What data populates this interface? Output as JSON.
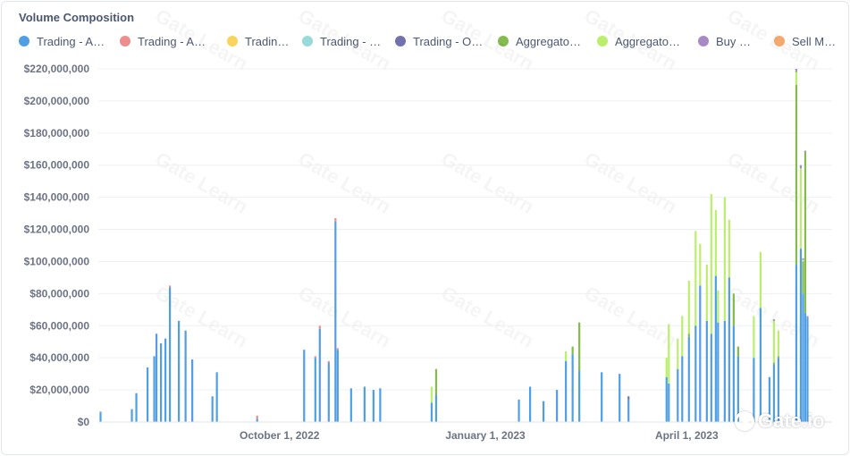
{
  "chart_data": {
    "type": "bar",
    "stacked": true,
    "title": "Volume Composition",
    "xlabel": "",
    "ylabel": "",
    "ylim": [
      0,
      220000000
    ],
    "y_ticks": [
      0,
      20000000,
      40000000,
      60000000,
      80000000,
      100000000,
      120000000,
      140000000,
      160000000,
      180000000,
      200000000,
      220000000
    ],
    "y_tick_labels": [
      "$0",
      "$20,000,000",
      "$40,000,000",
      "$60,000,000",
      "$80,000,000",
      "$100,000,000",
      "$120,000,000",
      "$140,000,000",
      "$160,000,000",
      "$180,000,000",
      "$200,000,000",
      "$220,000,000"
    ],
    "x_range": [
      "2022-07-12",
      "2023-06-05"
    ],
    "x_ticks": [
      {
        "date": "2022-10-01",
        "label": "October 1, 2022"
      },
      {
        "date": "2023-01-01",
        "label": "January 1, 2023"
      },
      {
        "date": "2023-04-01",
        "label": "April 1, 2023"
      }
    ],
    "grid": true,
    "legend_position": "top",
    "watermark": "Gate Learn",
    "brand_logo": "Gate.io",
    "series": [
      {
        "name": "Trading - A…",
        "color": "#509ee3"
      },
      {
        "name": "Trading - A…",
        "color": "#ef8c8c"
      },
      {
        "name": "Tradin…",
        "color": "#f9d45c"
      },
      {
        "name": "Trading - …",
        "color": "#98d9d9"
      },
      {
        "name": "Trading - O…",
        "color": "#7172ad"
      },
      {
        "name": "Aggregato…",
        "color": "#84bb4c"
      },
      {
        "name": "Aggregato…",
        "color": "#b9ef6b"
      },
      {
        "name": "Buy …",
        "color": "#a989c5"
      },
      {
        "name": "Sell M…",
        "color": "#f2a86f"
      }
    ],
    "bars": [
      {
        "date": "2022-07-13",
        "values": [
          6000000,
          0,
          0,
          0,
          0,
          0,
          0,
          500000,
          0
        ]
      },
      {
        "date": "2022-07-27",
        "values": [
          8000000,
          0,
          0,
          0,
          0,
          0,
          0,
          0,
          0
        ]
      },
      {
        "date": "2022-07-29",
        "values": [
          18000000,
          0,
          0,
          0,
          0,
          0,
          0,
          0,
          0
        ]
      },
      {
        "date": "2022-08-03",
        "values": [
          34000000,
          0,
          0,
          0,
          0,
          0,
          0,
          0,
          0
        ]
      },
      {
        "date": "2022-08-06",
        "values": [
          41000000,
          0,
          0,
          0,
          0,
          0,
          0,
          0,
          0
        ]
      },
      {
        "date": "2022-08-07",
        "values": [
          55000000,
          0,
          0,
          0,
          0,
          0,
          0,
          0,
          0
        ]
      },
      {
        "date": "2022-08-09",
        "values": [
          49000000,
          0,
          0,
          0,
          0,
          0,
          0,
          0,
          0
        ]
      },
      {
        "date": "2022-08-11",
        "values": [
          52000000,
          0,
          0,
          0,
          0,
          0,
          0,
          0,
          0
        ]
      },
      {
        "date": "2022-08-13",
        "values": [
          84000000,
          1000000,
          0,
          0,
          0,
          0,
          0,
          0,
          0
        ]
      },
      {
        "date": "2022-08-17",
        "values": [
          63000000,
          0,
          0,
          0,
          0,
          0,
          0,
          0,
          0
        ]
      },
      {
        "date": "2022-08-20",
        "values": [
          57000000,
          0,
          0,
          0,
          0,
          0,
          0,
          0,
          0
        ]
      },
      {
        "date": "2022-08-23",
        "values": [
          39000000,
          0,
          0,
          0,
          0,
          0,
          0,
          0,
          0
        ]
      },
      {
        "date": "2022-09-01",
        "values": [
          16000000,
          0,
          0,
          0,
          0,
          0,
          0,
          0,
          0
        ]
      },
      {
        "date": "2022-09-03",
        "values": [
          31000000,
          0,
          0,
          0,
          0,
          0,
          0,
          0,
          0
        ]
      },
      {
        "date": "2022-09-21",
        "values": [
          2000000,
          2000000,
          0,
          0,
          0,
          0,
          0,
          0,
          0
        ]
      },
      {
        "date": "2022-10-12",
        "values": [
          45000000,
          0,
          0,
          0,
          0,
          0,
          0,
          0,
          0
        ]
      },
      {
        "date": "2022-10-17",
        "values": [
          40000000,
          1000000,
          0,
          0,
          0,
          0,
          0,
          0,
          0
        ]
      },
      {
        "date": "2022-10-19",
        "values": [
          58000000,
          2000000,
          0,
          0,
          0,
          0,
          0,
          0,
          0
        ]
      },
      {
        "date": "2022-10-23",
        "values": [
          37000000,
          1000000,
          0,
          0,
          0,
          0,
          0,
          0,
          0
        ]
      },
      {
        "date": "2022-10-26",
        "values": [
          125000000,
          2000000,
          0,
          0,
          0,
          0,
          0,
          0,
          0
        ]
      },
      {
        "date": "2022-10-27",
        "values": [
          45000000,
          1000000,
          0,
          0,
          0,
          0,
          0,
          0,
          0
        ]
      },
      {
        "date": "2022-11-02",
        "values": [
          21000000,
          0,
          0,
          0,
          0,
          0,
          0,
          0,
          0
        ]
      },
      {
        "date": "2022-11-08",
        "values": [
          22000000,
          0,
          0,
          0,
          0,
          0,
          0,
          0,
          0
        ]
      },
      {
        "date": "2022-11-12",
        "values": [
          20000000,
          0,
          0,
          0,
          0,
          0,
          0,
          0,
          0
        ]
      },
      {
        "date": "2022-11-15",
        "values": [
          21000000,
          0,
          0,
          0,
          0,
          0,
          0,
          0,
          0
        ]
      },
      {
        "date": "2022-12-08",
        "values": [
          12000000,
          0,
          0,
          0,
          0,
          0,
          10000000,
          0,
          0
        ]
      },
      {
        "date": "2022-12-10",
        "values": [
          17000000,
          0,
          0,
          0,
          0,
          16000000,
          0,
          0,
          0
        ]
      },
      {
        "date": "2023-01-16",
        "values": [
          14000000,
          0,
          0,
          0,
          0,
          0,
          0,
          0,
          0
        ]
      },
      {
        "date": "2023-01-21",
        "values": [
          22000000,
          0,
          0,
          0,
          0,
          0,
          0,
          0,
          0
        ]
      },
      {
        "date": "2023-01-27",
        "values": [
          13000000,
          0,
          0,
          0,
          0,
          0,
          0,
          0,
          0
        ]
      },
      {
        "date": "2023-02-02",
        "values": [
          20000000,
          0,
          0,
          0,
          0,
          0,
          0,
          0,
          0
        ]
      },
      {
        "date": "2023-02-06",
        "values": [
          38000000,
          0,
          0,
          0,
          0,
          0,
          6000000,
          0,
          0
        ]
      },
      {
        "date": "2023-02-09",
        "values": [
          42000000,
          0,
          0,
          0,
          0,
          5000000,
          0,
          0,
          0
        ]
      },
      {
        "date": "2023-02-12",
        "values": [
          32000000,
          0,
          0,
          0,
          0,
          30000000,
          0,
          0,
          0
        ]
      },
      {
        "date": "2023-02-22",
        "values": [
          31000000,
          0,
          0,
          0,
          0,
          0,
          0,
          0,
          0
        ]
      },
      {
        "date": "2023-03-02",
        "values": [
          30000000,
          0,
          0,
          0,
          0,
          0,
          0,
          0,
          0
        ]
      },
      {
        "date": "2023-03-06",
        "values": [
          14000000,
          0,
          0,
          0,
          2000000,
          0,
          0,
          0,
          0
        ]
      },
      {
        "date": "2023-03-23",
        "values": [
          28000000,
          0,
          0,
          0,
          0,
          0,
          12000000,
          0,
          0
        ]
      },
      {
        "date": "2023-03-24",
        "values": [
          24000000,
          0,
          0,
          0,
          0,
          0,
          37000000,
          0,
          0
        ]
      },
      {
        "date": "2023-03-28",
        "values": [
          33000000,
          0,
          0,
          0,
          0,
          0,
          19000000,
          0,
          0
        ]
      },
      {
        "date": "2023-03-30",
        "values": [
          41000000,
          0,
          0,
          0,
          0,
          0,
          25000000,
          0,
          0
        ]
      },
      {
        "date": "2023-04-02",
        "values": [
          53000000,
          0,
          0,
          0,
          0,
          2000000,
          33000000,
          0,
          0
        ]
      },
      {
        "date": "2023-04-05",
        "values": [
          60000000,
          0,
          0,
          0,
          0,
          0,
          59000000,
          0,
          0
        ]
      },
      {
        "date": "2023-04-07",
        "values": [
          85000000,
          0,
          0,
          0,
          0,
          0,
          26000000,
          0,
          0
        ]
      },
      {
        "date": "2023-04-10",
        "values": [
          63000000,
          0,
          0,
          0,
          0,
          0,
          35000000,
          0,
          0
        ]
      },
      {
        "date": "2023-04-12",
        "values": [
          55000000,
          0,
          0,
          0,
          0,
          0,
          87000000,
          0,
          0
        ]
      },
      {
        "date": "2023-04-14",
        "values": [
          91000000,
          0,
          0,
          0,
          0,
          0,
          41000000,
          0,
          0
        ]
      },
      {
        "date": "2023-04-15",
        "values": [
          62000000,
          0,
          0,
          0,
          0,
          0,
          20000000,
          0,
          0
        ]
      },
      {
        "date": "2023-04-18",
        "values": [
          63000000,
          0,
          0,
          0,
          0,
          0,
          77000000,
          0,
          0
        ]
      },
      {
        "date": "2023-04-20",
        "values": [
          90000000,
          0,
          0,
          0,
          0,
          0,
          36000000,
          0,
          0
        ]
      },
      {
        "date": "2023-04-22",
        "values": [
          60000000,
          0,
          0,
          0,
          0,
          20000000,
          0,
          0,
          0
        ]
      },
      {
        "date": "2023-04-24",
        "values": [
          41000000,
          0,
          0,
          0,
          0,
          6000000,
          0,
          0,
          0
        ]
      },
      {
        "date": "2023-05-01",
        "values": [
          40000000,
          0,
          0,
          0,
          0,
          0,
          26000000,
          0,
          0
        ]
      },
      {
        "date": "2023-05-04",
        "values": [
          71000000,
          0,
          0,
          0,
          0,
          0,
          35000000,
          0,
          0
        ]
      },
      {
        "date": "2023-05-08",
        "values": [
          28000000,
          0,
          0,
          0,
          0,
          0,
          0,
          0,
          0
        ]
      },
      {
        "date": "2023-05-10",
        "values": [
          36000000,
          0,
          0,
          0,
          0,
          1000000,
          26000000,
          1000000,
          0
        ]
      },
      {
        "date": "2023-05-12",
        "values": [
          40000000,
          0,
          0,
          0,
          0,
          1000000,
          16000000,
          0,
          0
        ]
      },
      {
        "date": "2023-05-20",
        "values": [
          98000000,
          0,
          0,
          0,
          0,
          112000000,
          8000000,
          2000000,
          0
        ]
      },
      {
        "date": "2023-05-22",
        "values": [
          108000000,
          0,
          0,
          0,
          0,
          0,
          50000000,
          2000000,
          0
        ]
      },
      {
        "date": "2023-05-23",
        "values": [
          80000000,
          0,
          0,
          0,
          0,
          20000000,
          1000000,
          1000000,
          0
        ]
      },
      {
        "date": "2023-05-24",
        "values": [
          68000000,
          0,
          0,
          0,
          0,
          100000000,
          0,
          1000000,
          0
        ]
      },
      {
        "date": "2023-05-25",
        "values": [
          65000000,
          0,
          0,
          0,
          0,
          0,
          0,
          1000000,
          0
        ]
      }
    ]
  }
}
